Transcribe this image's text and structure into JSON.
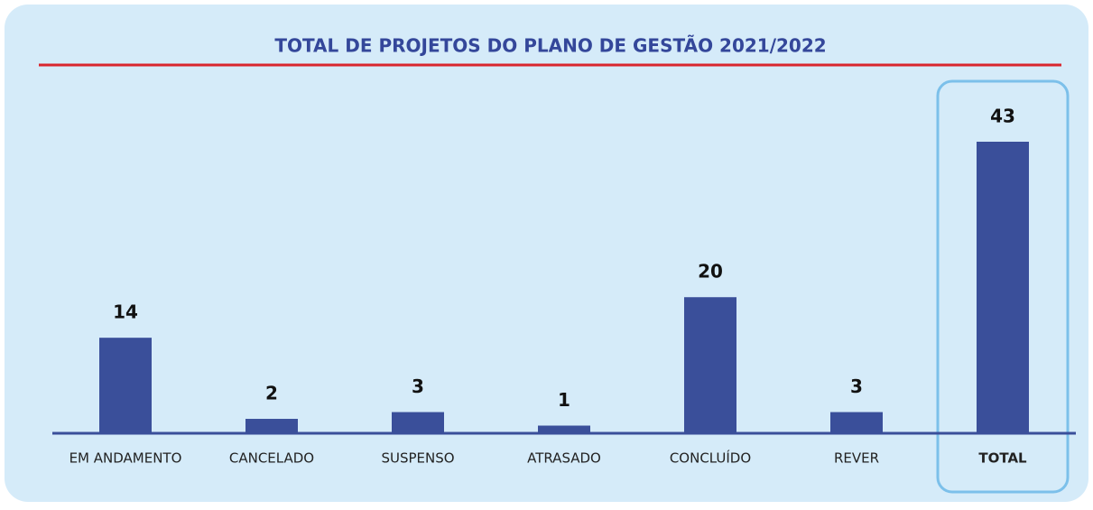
{
  "chart_data": {
    "type": "bar",
    "title": "TOTAL DE PROJETOS DO PLANO DE GESTÃO 2021/2022",
    "categories": [
      "EM ANDAMENTO",
      "CANCELADO",
      "SUSPENSO",
      "ATRASADO",
      "CONCLUÍDO",
      "REVER",
      "TOTAL"
    ],
    "values": [
      14,
      2,
      3,
      1,
      20,
      3,
      43
    ],
    "color": "#3a4f9a"
  }
}
